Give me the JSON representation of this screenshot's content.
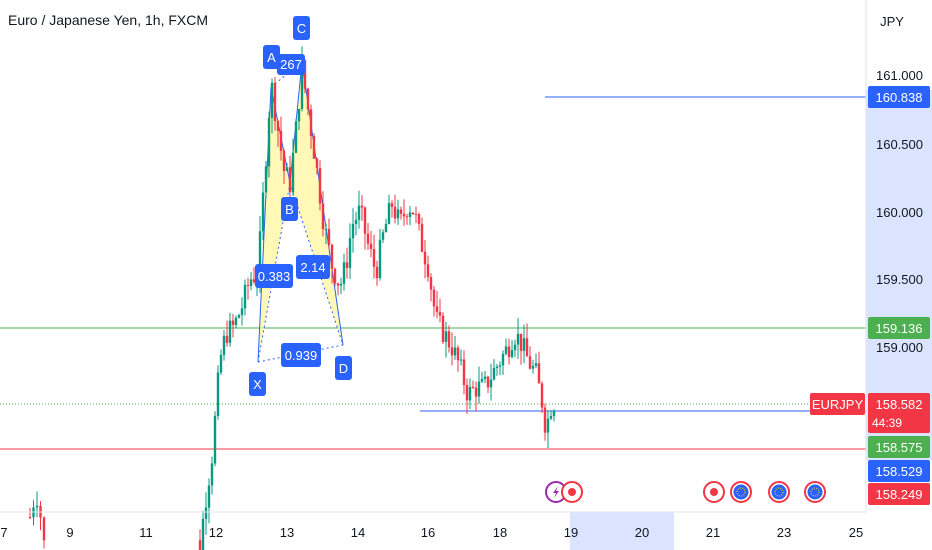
{
  "header": {
    "title": "Euro / Japanese Yen, 1h, FXCM",
    "currency": "JPY"
  },
  "price_scale": {
    "ticks": [
      "161.000",
      "160.500",
      "160.000",
      "159.500",
      "159.000"
    ],
    "labels": {
      "upper_line": "160.838",
      "green_line": "159.136",
      "symbol": "EURJPY",
      "last_price": "158.582",
      "countdown": "44:39",
      "green_price": "158.575",
      "blue_price": "158.529",
      "red_price": "158.249"
    }
  },
  "time_scale": {
    "ticks": [
      "7",
      "9",
      "11",
      "12",
      "13",
      "14",
      "16",
      "18",
      "19",
      "20",
      "21",
      "23",
      "25"
    ]
  },
  "pattern": {
    "points": [
      "X",
      "A",
      "B",
      "C",
      "D"
    ],
    "ratios": {
      "xb": "0.383",
      "ac": "267",
      "bd": "2.14",
      "xd": "0.939"
    }
  },
  "colors": {
    "up": "#089981",
    "down": "#f23645",
    "blue_line": "#2962ff",
    "green_line": "#4caf50",
    "red_line": "#f23645",
    "pattern_fill": "#fff59d",
    "pattern_line": "#2962ff",
    "label_bg": "#2962ff"
  },
  "events": [
    "lightning-icon",
    "red-dot-icon",
    "red-dot-icon",
    "eu-flag-icon",
    "eu-flag-icon",
    "eu-flag-icon"
  ],
  "chart_data": {
    "type": "candlestick",
    "symbol": "EURJPY",
    "timeframe": "1h",
    "ylim": [
      158.0,
      161.25
    ],
    "levels": [
      160.838,
      159.136,
      158.582,
      158.575,
      158.529,
      158.249
    ],
    "harmonic_pattern": {
      "X": 158.9,
      "A": 160.95,
      "B": 160.15,
      "C": 161.1,
      "D": 159.01
    }
  }
}
